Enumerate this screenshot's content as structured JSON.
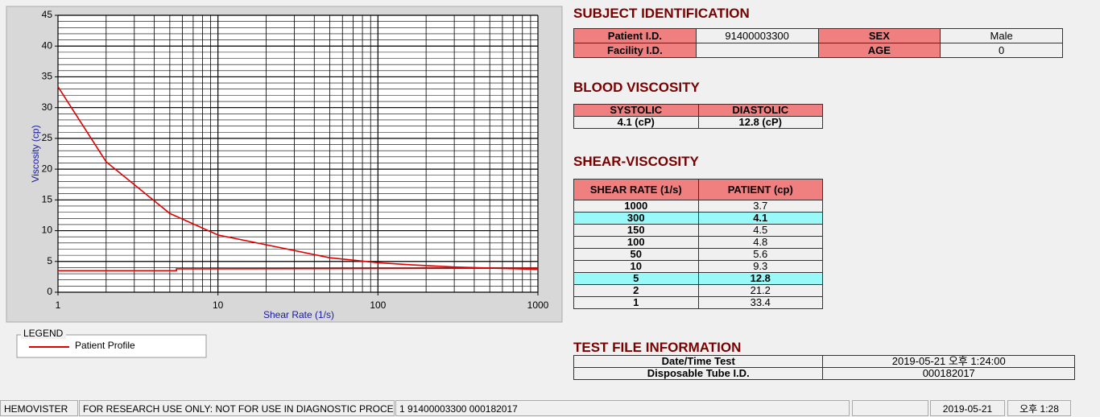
{
  "chart_data": {
    "type": "line",
    "xlabel": "Shear Rate (1/s)",
    "ylabel": "Viscosity (cp)",
    "xscale": "log",
    "xlim": [
      1,
      1000
    ],
    "ylim": [
      0,
      45
    ],
    "xticks": [
      1,
      10,
      100,
      1000
    ],
    "yticks": [
      0,
      5,
      10,
      15,
      20,
      25,
      30,
      35,
      40,
      45
    ],
    "grid": true,
    "legend": {
      "title": "LEGEND",
      "position": "below"
    },
    "series": [
      {
        "name": "Patient Profile",
        "color": "#e00000",
        "x": [
          1,
          2,
          5,
          10,
          50,
          100,
          150,
          300,
          1000
        ],
        "values": [
          33.4,
          21.2,
          12.8,
          9.3,
          5.6,
          4.8,
          4.5,
          4.1,
          3.7
        ]
      },
      {
        "color": "#e00000",
        "x": [
          1,
          5.5,
          5.5,
          1000
        ],
        "values": [
          3.5,
          3.5,
          3.8,
          3.9
        ]
      }
    ]
  },
  "subject": {
    "title": "SUBJECT IDENTIFICATION",
    "rows": [
      [
        "Patient I.D.",
        "91400003300",
        "SEX",
        "Male"
      ],
      [
        "Facility I.D.",
        null,
        "AGE",
        "0"
      ]
    ]
  },
  "blood": {
    "title": "BLOOD VISCOSITY",
    "headers": [
      "SYSTOLIC",
      "DIASTOLIC"
    ],
    "values": [
      "4.1 (cP)",
      "12.8 (cP)"
    ]
  },
  "shear": {
    "title": "SHEAR-VISCOSITY",
    "headers": [
      "SHEAR RATE (1/s)",
      "PATIENT (cp)"
    ],
    "rows": [
      [
        "1000",
        "3.7"
      ],
      [
        "300",
        "4.1"
      ],
      [
        "150",
        "4.5"
      ],
      [
        "100",
        "4.8"
      ],
      [
        "50",
        "5.6"
      ],
      [
        "10",
        "9.3"
      ],
      [
        "5",
        "12.8"
      ],
      [
        "2",
        "21.2"
      ],
      [
        "1",
        "33.4"
      ]
    ],
    "highlight_rows": [
      1,
      6
    ]
  },
  "test_file": {
    "title": "TEST FILE INFORMATION",
    "rows": [
      [
        "Date/Time Test",
        "2019-05-21   오후 1:24:00"
      ],
      [
        "Disposable Tube I.D.",
        "000182017"
      ]
    ]
  },
  "status_bar": [
    "HEMOVISTER",
    "FOR RESEARCH USE ONLY: NOT FOR USE IN DIAGNOSTIC PROCEDURES",
    "1  91400003300  000182017",
    null,
    "2019-05-21",
    "오후 1:28"
  ]
}
